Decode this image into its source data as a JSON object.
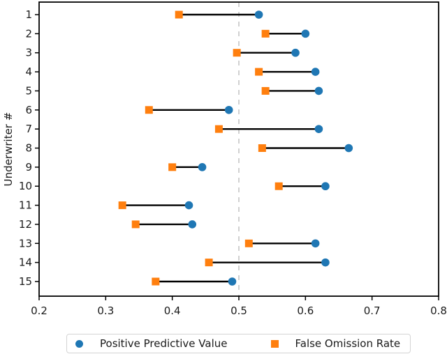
{
  "chart_data": {
    "type": "scatter",
    "variant": "dumbbell",
    "orientation": "horizontal",
    "title": "",
    "xlabel": "",
    "ylabel": "Underwriter #",
    "categories": [
      "1",
      "2",
      "3",
      "4",
      "5",
      "6",
      "7",
      "8",
      "9",
      "10",
      "11",
      "12",
      "13",
      "14",
      "15"
    ],
    "series": [
      {
        "name": "Positive Predictive Value",
        "marker": "circle",
        "color": "#1f77b4",
        "values": [
          0.53,
          0.6,
          0.585,
          0.615,
          0.62,
          0.485,
          0.62,
          0.665,
          0.445,
          0.63,
          0.425,
          0.43,
          0.615,
          0.63,
          0.49
        ]
      },
      {
        "name": "False Omission Rate",
        "marker": "square",
        "color": "#ff7f0e",
        "values": [
          0.41,
          0.54,
          0.497,
          0.53,
          0.54,
          0.365,
          0.47,
          0.535,
          0.4,
          0.56,
          0.325,
          0.345,
          0.515,
          0.455,
          0.375
        ]
      }
    ],
    "connector_color": "#000000",
    "reference_line": {
      "x": 0.5,
      "style": "dashed",
      "color": "#cccccc"
    },
    "xlim": [
      0.2,
      0.8
    ],
    "xticks": [
      "0.2",
      "0.3",
      "0.4",
      "0.5",
      "0.6",
      "0.7",
      "0.8"
    ],
    "grid": false,
    "legend_position": "bottom",
    "axis_color": "#000000",
    "tick_label_color": "#1a1a1a"
  }
}
